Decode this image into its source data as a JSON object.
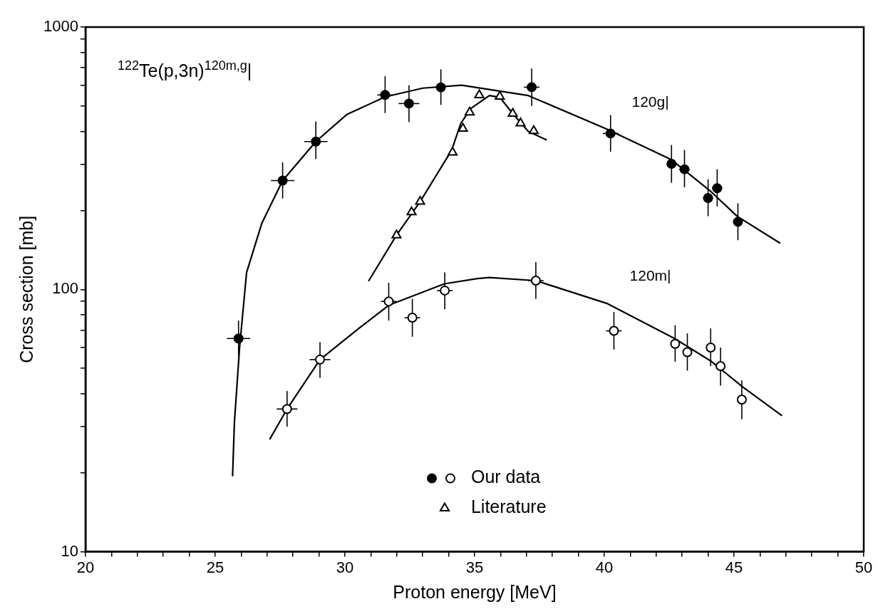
{
  "chart_data": {
    "type": "scatter",
    "title": "$^{122}$Te(p,3n)$^{120m,g}$|",
    "xlabel": "Proton energy [MeV]",
    "ylabel": "Cross section [mb]",
    "log": "y",
    "legend": "bottom",
    "xlim": [
      20,
      50
    ],
    "ylim": [
      10,
      1000
    ],
    "xticks": [
      20,
      {
        "value": 21,
        "label": null
      },
      {
        "value": 22,
        "label": null
      },
      {
        "value": 23,
        "label": null
      },
      {
        "value": 24,
        "label": null
      },
      25,
      {
        "value": 26,
        "label": null
      },
      {
        "value": 27,
        "label": null
      },
      {
        "value": 28,
        "label": null
      },
      {
        "value": 29,
        "label": null
      },
      30,
      {
        "value": 31,
        "label": null
      },
      {
        "value": 32,
        "label": null
      },
      {
        "value": 33,
        "label": null
      },
      {
        "value": 34,
        "label": null
      },
      35,
      {
        "value": 36,
        "label": null
      },
      {
        "value": 37,
        "label": null
      },
      {
        "value": 38,
        "label": null
      },
      {
        "value": 39,
        "label": null
      },
      40,
      {
        "value": 41,
        "label": null
      },
      {
        "value": 42,
        "label": null
      },
      {
        "value": 43,
        "label": null
      },
      {
        "value": 44,
        "label": null
      },
      45,
      {
        "value": 46,
        "label": null
      },
      {
        "value": 47,
        "label": null
      },
      {
        "value": 48,
        "label": null
      },
      {
        "value": 49,
        "label": null
      },
      50
    ],
    "yticks": [
      10,
      {
        "value": 20,
        "label": null
      },
      {
        "value": 30,
        "label": null
      },
      {
        "value": 40,
        "label": null
      },
      {
        "value": 50,
        "label": null
      },
      {
        "value": 60,
        "label": null
      },
      {
        "value": 70,
        "label": null
      },
      {
        "value": 80,
        "label": null
      },
      {
        "value": 90,
        "label": null
      },
      100,
      {
        "value": 200,
        "label": null
      },
      {
        "value": 300,
        "label": null
      },
      {
        "value": 400,
        "label": null
      },
      {
        "value": 500,
        "label": null
      },
      {
        "value": 600,
        "label": null
      },
      {
        "value": 700,
        "label": null
      },
      {
        "value": 800,
        "label": null
      },
      {
        "value": 900,
        "label": null
      },
      1000
    ],
    "annotations": [
      {
        "text": "120g|",
        "x": 41.5,
        "y": 350
      },
      {
        "text": "120m|",
        "x": 41.5,
        "y": 76
      }
    ],
    "series": [
      {
        "type": "scatter",
        "marker": "circle",
        "color": "#000000",
        "x": [
          25.9,
          27.6,
          28.88,
          31.55,
          32.47,
          33.7,
          37.2,
          40.24,
          42.59,
          43.09,
          44.0,
          44.35,
          45.15
        ],
        "values": [
          65,
          260,
          366,
          551,
          511,
          589,
          590,
          393,
          301,
          287,
          223,
          243,
          181
        ],
        "errors": [
          [
            56,
            76
          ],
          [
            222,
            305
          ],
          [
            314,
            437
          ],
          [
            470,
            650
          ],
          [
            435,
            600
          ],
          [
            505,
            690
          ],
          [
            500,
            695
          ],
          [
            335,
            462
          ],
          [
            255,
            355
          ],
          [
            245,
            340
          ],
          [
            190,
            263
          ],
          [
            207,
            287
          ],
          [
            154,
            213
          ]
        ],
        "xerrors": [
          0.45,
          0.45,
          0.45,
          0.3,
          0.4,
          null,
          0.3,
          0.3,
          0.2,
          0.2,
          0.2,
          0.2,
          null
        ]
      },
      {
        "name": "Our data",
        "type": "scatter",
        "marker": "circle",
        "color": "#ffffff",
        "x": [
          27.77,
          29.04,
          31.69,
          32.6,
          33.85,
          37.36,
          40.37,
          42.73,
          43.2,
          44.1,
          44.48,
          45.3
        ],
        "values": [
          35,
          54,
          90,
          78,
          99,
          108,
          69.5,
          62,
          57.6,
          60,
          51,
          38
        ],
        "errors": [
          [
            30,
            41
          ],
          [
            46,
            63
          ],
          [
            76,
            106
          ],
          [
            66,
            92
          ],
          [
            84,
            116
          ],
          [
            92,
            127
          ],
          [
            59,
            82
          ],
          [
            53,
            73
          ],
          [
            49,
            68
          ],
          [
            51,
            71
          ],
          [
            43,
            60
          ],
          [
            32,
            45
          ]
        ],
        "xerrors": [
          0.4,
          0.4,
          0.3,
          0.3,
          0.3,
          0.3,
          0.3,
          0.15,
          null,
          0.15,
          0.15,
          null
        ]
      },
      {
        "name": "Literature",
        "type": "scatter",
        "marker": "triangle",
        "color": "#ffffff",
        "x": [
          31.99,
          32.57,
          32.9,
          34.15,
          34.55,
          34.81,
          35.18,
          35.97,
          36.47,
          36.77,
          37.28
        ],
        "values": [
          161,
          197,
          216,
          333,
          410,
          473,
          550,
          544,
          468,
          430,
          402
        ]
      },
      {
        "type": "line",
        "marker": "none",
        "color": "#000000",
        "x": [
          25.67,
          25.74,
          25.94,
          26.21,
          26.8,
          27.6,
          28.88,
          30.07,
          31.55,
          33.0,
          34.5,
          37.07,
          40.08,
          42.59,
          44.11,
          45.12,
          46.78
        ],
        "values": [
          19.4,
          31,
          60,
          116,
          179,
          260,
          366,
          464,
          542,
          585,
          600,
          548,
          409,
          312,
          236,
          190,
          150
        ]
      },
      {
        "type": "line",
        "marker": "none",
        "color": "#000000",
        "x": [
          27.1,
          27.77,
          29.04,
          30.56,
          31.69,
          33.83,
          35.1,
          35.57,
          37.36,
          40.09,
          42.71,
          44.11,
          45.32,
          46.85
        ],
        "values": [
          26.8,
          35,
          54,
          71.3,
          87,
          105,
          110,
          111,
          108,
          88.5,
          65,
          53.3,
          42.6,
          33
        ]
      },
      {
        "type": "line",
        "marker": "none",
        "color": "#000000",
        "x": [
          30.91,
          31.99,
          32.9,
          34.12,
          34.46,
          34.86,
          35.57,
          35.97,
          36.47,
          37.07,
          37.78
        ],
        "values": [
          107.5,
          161,
          216,
          340,
          428,
          490,
          548,
          540,
          468,
          400,
          371
        ]
      }
    ]
  }
}
